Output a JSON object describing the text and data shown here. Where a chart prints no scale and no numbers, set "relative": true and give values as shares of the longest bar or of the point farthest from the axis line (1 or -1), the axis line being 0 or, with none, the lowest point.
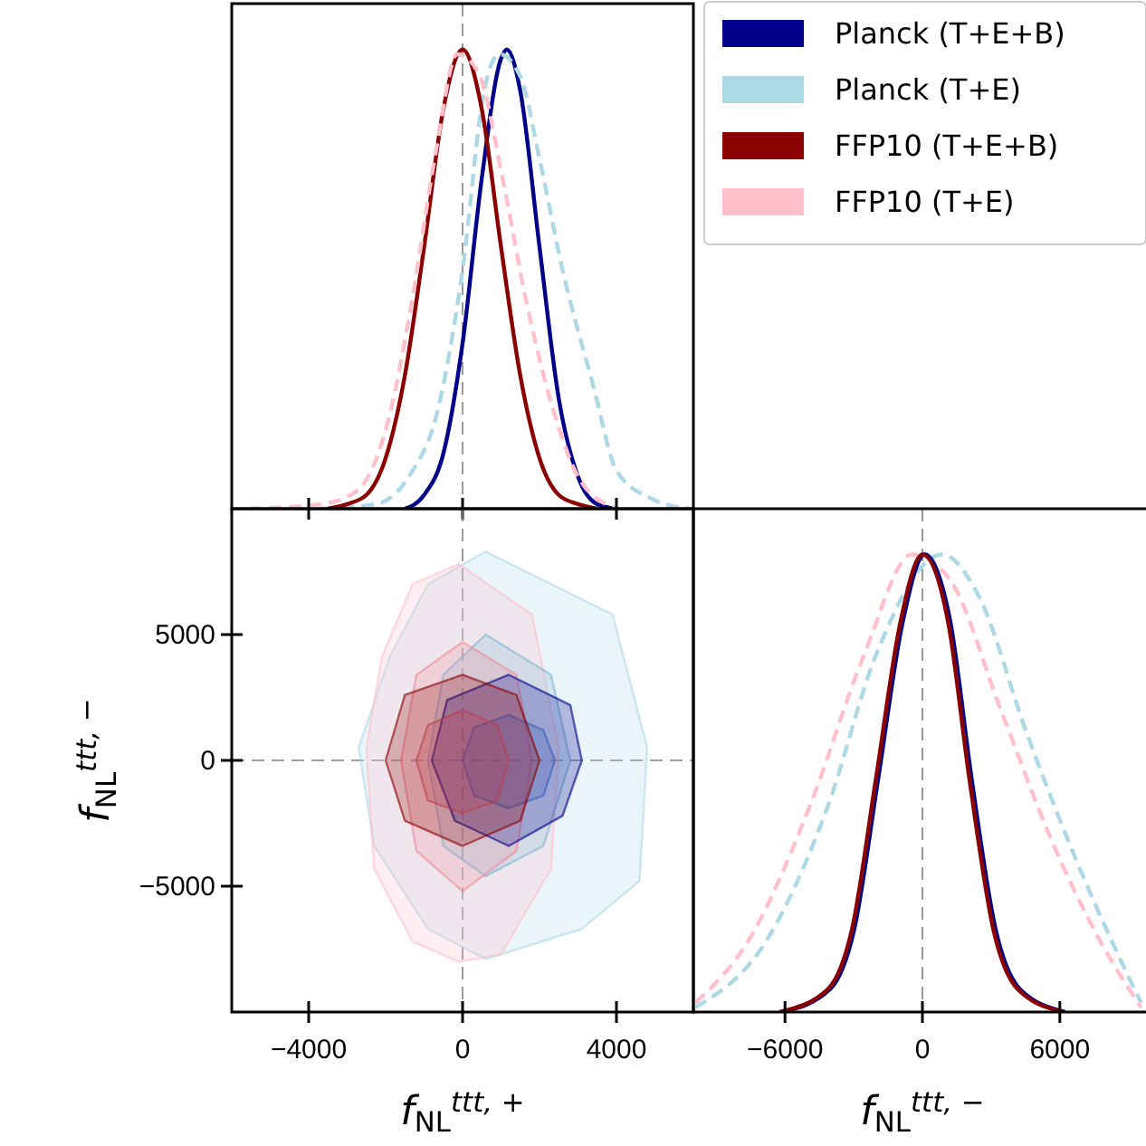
{
  "chart_data": [
    {
      "type": "line",
      "relative": true,
      "xlim": [
        -6000,
        6000
      ],
      "xticks": [
        -4000,
        0,
        4000
      ],
      "tick_labels": false,
      "legend": "right",
      "ref_lines": [
        {
          "axis": "x",
          "value": 0,
          "color": "#808080",
          "line_style": "dashed"
        }
      ],
      "series": [
        {
          "name": "Planck (T+E+B)",
          "color": "#00008b",
          "line_style": "solid",
          "x": [
            -1500,
            -1000,
            -500,
            0,
            500,
            1000,
            1150,
            1500,
            2000,
            2500,
            3000,
            3500,
            4000
          ],
          "values": [
            0,
            0.03,
            0.12,
            0.36,
            0.72,
            0.98,
            1,
            0.91,
            0.57,
            0.24,
            0.07,
            0.01,
            0
          ]
        },
        {
          "name": "Planck (T+E)",
          "color": "#add8e6",
          "line_style": "dashed",
          "x": [
            -3670,
            -2260,
            -1320,
            -690,
            0,
            560,
            960,
            1510,
            1980,
            2600,
            3390,
            4020,
            4960,
            5900
          ],
          "values": [
            0,
            0.01,
            0.08,
            0.2,
            0.52,
            0.91,
            0.99,
            0.94,
            0.77,
            0.52,
            0.27,
            0.08,
            0.02,
            0
          ]
        },
        {
          "name": "FFP10 (T+E+B)",
          "color": "#8b0000",
          "line_style": "solid",
          "x": [
            -3500,
            -3000,
            -2500,
            -2000,
            -1500,
            -1000,
            -500,
            0,
            500,
            1000,
            1500,
            2000,
            2500,
            3000,
            3500
          ],
          "values": [
            0,
            0.01,
            0.03,
            0.11,
            0.29,
            0.57,
            0.87,
            1,
            0.87,
            0.57,
            0.29,
            0.11,
            0.03,
            0.01,
            0
          ]
        },
        {
          "name": "FFP10 (T+E)",
          "color": "#ffc0cb",
          "line_style": "dashed",
          "x": [
            -5550,
            -3670,
            -2730,
            -1940,
            -1320,
            -690,
            -140,
            410,
            1040,
            1660,
            2450,
            3070,
            4020
          ],
          "values": [
            0,
            0.01,
            0.04,
            0.19,
            0.45,
            0.78,
            0.99,
            0.95,
            0.72,
            0.45,
            0.19,
            0.06,
            0
          ]
        }
      ]
    },
    {
      "type": "area",
      "xlim": [
        -6000,
        6000
      ],
      "ylim": [
        -10000,
        10000
      ],
      "xticks": [
        {
          "value": -4000,
          "label": "−4000"
        },
        0,
        4000
      ],
      "yticks": [
        {
          "value": -5000,
          "label": "−5000"
        },
        0,
        5000
      ],
      "xlabel": "f$_{NL}$$^{ttt, +}$",
      "ylabel": "f$_{NL}$$^{ttt, −}$",
      "ref_lines": [
        {
          "axis": "x",
          "value": 0,
          "color": "#808080",
          "line_style": "dashed"
        },
        {
          "axis": "y",
          "value": 0,
          "color": "#808080",
          "line_style": "dashed"
        }
      ],
      "series": [
        {
          "color": "#add8e6",
          "x": [
            600,
            3900,
            4800,
            4600,
            3100,
            600,
            -900,
            -2300,
            -2700,
            -1900,
            -900
          ],
          "values": [
            8300,
            5800,
            500,
            -4800,
            -6700,
            -7900,
            -6700,
            -3400,
            500,
            4100,
            7000
          ]
        },
        {
          "color": "#ffc0cb",
          "x": [
            -100,
            1800,
            2500,
            2300,
            1000,
            -100,
            -1300,
            -2300,
            -2500,
            -2100,
            -1300
          ],
          "values": [
            7800,
            5800,
            500,
            -4300,
            -7700,
            -8000,
            -7200,
            -4300,
            500,
            4100,
            7000
          ]
        },
        {
          "color": "#7fb6d6",
          "x": [
            600,
            2300,
            2800,
            2100,
            600,
            -500,
            -900,
            -500
          ],
          "values": [
            5000,
            3400,
            0,
            -3400,
            -4600,
            -3400,
            0,
            3400
          ]
        },
        {
          "color": "#f08a9a",
          "x": [
            0,
            1400,
            1800,
            1400,
            0,
            -1200,
            -1600,
            -1200
          ],
          "values": [
            4700,
            3400,
            0,
            -3600,
            -5200,
            -3600,
            0,
            3400
          ]
        },
        {
          "color": "#00008b",
          "x": [
            1200,
            2800,
            3100,
            2600,
            1200,
            -200,
            -800,
            -400
          ],
          "values": [
            3400,
            2200,
            0,
            -2200,
            -3400,
            -2400,
            0,
            2400
          ]
        },
        {
          "color": "#3a5fc0",
          "x": [
            1200,
            2100,
            2400,
            2100,
            1200,
            300,
            0,
            300
          ],
          "values": [
            1800,
            1200,
            0,
            -1400,
            -1900,
            -1400,
            0,
            1300
          ]
        },
        {
          "color": "#8b0000",
          "x": [
            0,
            1400,
            2000,
            1500,
            0,
            -1500,
            -2000,
            -1500
          ],
          "values": [
            3400,
            2600,
            0,
            -2400,
            -3400,
            -2400,
            0,
            2600
          ]
        },
        {
          "color": "#c0404e",
          "x": [
            0,
            900,
            1200,
            900,
            0,
            -900,
            -1200,
            -900
          ],
          "values": [
            2000,
            1400,
            0,
            -1600,
            -2100,
            -1600,
            0,
            1400
          ]
        }
      ]
    },
    {
      "type": "line",
      "relative": true,
      "xlim": [
        -10000,
        10000
      ],
      "xticks": [
        {
          "value": -6000,
          "label": "−6000"
        },
        0,
        6000
      ],
      "xlabel": "f$_{NL}$$^{ttt, −}$",
      "tick_labels": "x",
      "ref_lines": [
        {
          "axis": "x",
          "value": 0,
          "color": "#808080",
          "line_style": "dashed"
        }
      ],
      "series": [
        {
          "color": "#add8e6",
          "line_style": "dashed",
          "x": [
            -9920,
            -6760,
            -4130,
            -2030,
            870,
            2450,
            4550,
            6650,
            8500,
            9550
          ],
          "values": [
            0.01,
            0.16,
            0.45,
            0.78,
            1,
            0.91,
            0.61,
            0.34,
            0.13,
            0.02
          ]
        },
        {
          "color": "#ffc0cb",
          "line_style": "dashed",
          "x": [
            -9920,
            -7550,
            -4920,
            -2550,
            -450,
            1130,
            3500,
            5600,
            7710,
            9550
          ],
          "values": [
            0.02,
            0.16,
            0.45,
            0.78,
            1,
            0.95,
            0.65,
            0.38,
            0.16,
            0.01
          ]
        },
        {
          "color": "#00008b",
          "line_style": "solid",
          "x": [
            -6140,
            -4030,
            -2980,
            -1930,
            -870,
            100,
            1230,
            2150,
            3200,
            4260,
            6230
          ],
          "values": [
            0,
            0.05,
            0.18,
            0.51,
            0.85,
            1,
            0.85,
            0.51,
            0.18,
            0.05,
            0
          ]
        },
        {
          "color": "#8b0000",
          "line_style": "solid",
          "x": [
            -6240,
            -4130,
            -3080,
            -2030,
            -970,
            0,
            1130,
            2050,
            3100,
            4160,
            6130
          ],
          "values": [
            0,
            0.05,
            0.18,
            0.51,
            0.85,
            1,
            0.85,
            0.51,
            0.18,
            0.05,
            0
          ]
        }
      ]
    }
  ]
}
